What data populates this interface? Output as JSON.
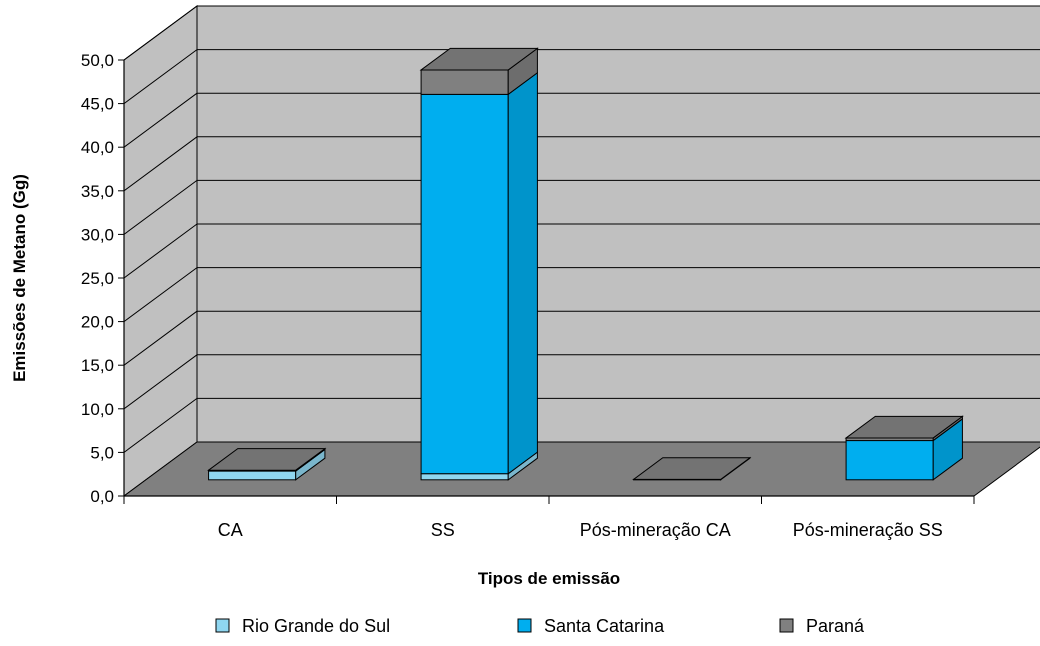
{
  "chart_data": {
    "type": "bar",
    "stacked": true,
    "three_d": true,
    "title": "",
    "xlabel": "Tipos de emissão",
    "ylabel": "Emissões de Metano (Gg)",
    "ylim": [
      0,
      50
    ],
    "ytick_step": 5,
    "ytick_labels": [
      "0,0",
      "5,0",
      "10,0",
      "15,0",
      "20,0",
      "25,0",
      "30,0",
      "35,0",
      "40,0",
      "45,0",
      "50,0"
    ],
    "grid": true,
    "legend_position": "bottom",
    "categories": [
      "CA",
      "SS",
      "Pós-mineração CA",
      "Pós-mineração SS"
    ],
    "series": [
      {
        "name": "Rio Grande do Sul",
        "color": "#8fd6f0",
        "values": [
          1.0,
          0.7,
          0.0,
          0.0
        ]
      },
      {
        "name": "Santa Catarina",
        "color": "#00aeef",
        "values": [
          0.0,
          43.5,
          0.0,
          4.5
        ]
      },
      {
        "name": "Paraná",
        "color": "#808080",
        "values": [
          0.1,
          2.8,
          0.05,
          0.3
        ]
      }
    ],
    "colors": {
      "wall": "#c0c0c0",
      "floor": "#808080",
      "outline": "#000000"
    }
  }
}
